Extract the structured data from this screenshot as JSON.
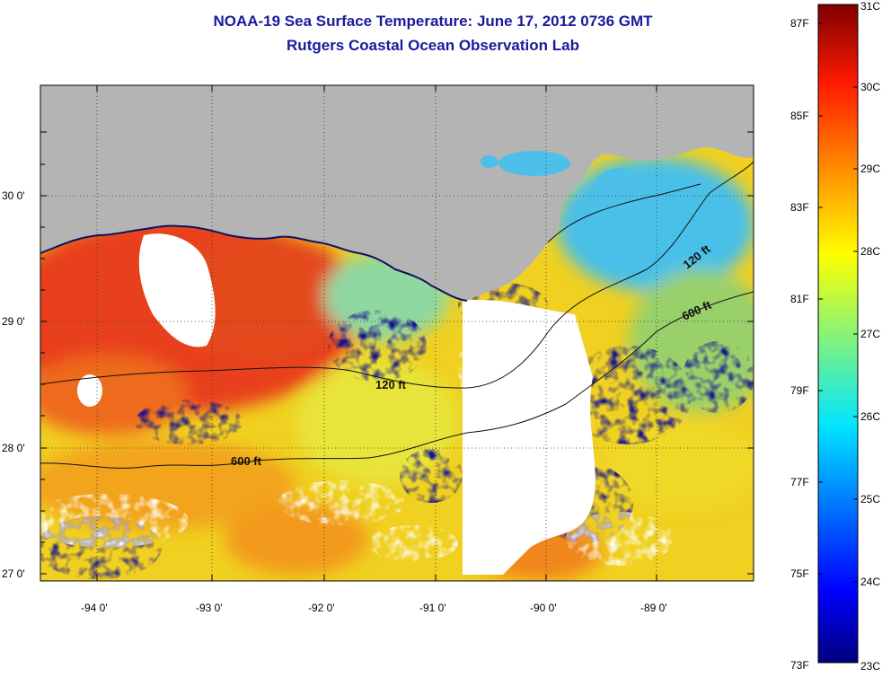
{
  "header": {
    "title": "NOAA-19 Sea Surface Temperature:  June 17, 2012 0736 GMT",
    "subtitle": "Rutgers Coastal Ocean Observation Lab"
  },
  "map": {
    "lon_ticks": [
      "-94 0'",
      "-93 0'",
      "-92 0'",
      "-91 0'",
      "-90 0'",
      "-89 0'"
    ],
    "lat_ticks": [
      "30 0'",
      "29 0'",
      "28 0'",
      "27 0'"
    ],
    "contour_labels": [
      "120 ft",
      "600 ft",
      "120 ft",
      "600 ft"
    ],
    "colors": {
      "land": "#b4b4b4",
      "no_data": "#ffffff",
      "warm": "#e8401c",
      "mid": "#f5d21e",
      "cool": "#1a1a9a"
    }
  },
  "colorbar": {
    "fahrenheit_labels": [
      "87F",
      "85F",
      "83F",
      "81F",
      "79F",
      "77F",
      "75F",
      "73F"
    ],
    "celsius_labels": [
      "31C",
      "30C",
      "29C",
      "28C",
      "27C",
      "26C",
      "25C",
      "24C",
      "23C"
    ],
    "range_c": [
      23,
      31
    ],
    "range_f": [
      73,
      87
    ]
  }
}
